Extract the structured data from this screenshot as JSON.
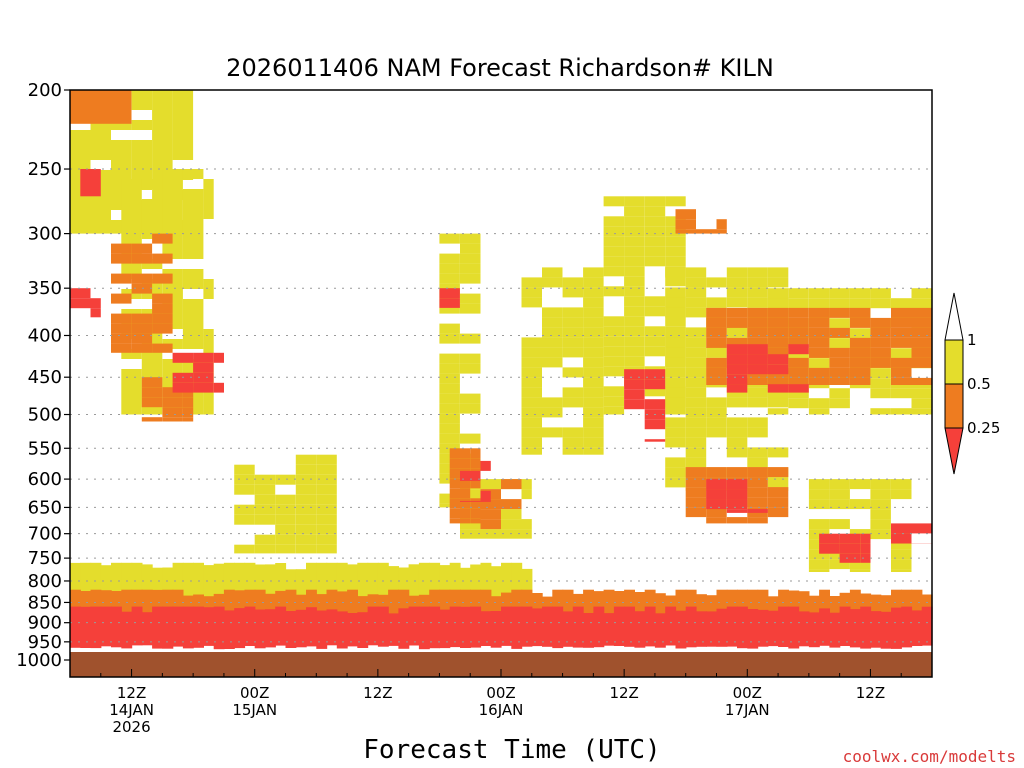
{
  "chart_data": {
    "type": "heatmap",
    "title": "2026011406 NAM Forecast Richardson# KILN",
    "xlabel": "Forecast Time (UTC)",
    "ylabel": "",
    "y_scale": "log pressure",
    "ylim": [
      1000,
      200
    ],
    "grid": true,
    "y_ticks": [
      200,
      250,
      300,
      350,
      400,
      450,
      500,
      550,
      600,
      650,
      700,
      750,
      800,
      850,
      900,
      950,
      1000
    ],
    "x_ticks": [
      {
        "hour": 6,
        "lines": [
          "12Z",
          "14JAN",
          "2026"
        ]
      },
      {
        "hour": 18,
        "lines": [
          "00Z",
          "15JAN"
        ]
      },
      {
        "hour": 30,
        "lines": [
          "12Z"
        ]
      },
      {
        "hour": 42,
        "lines": [
          "00Z",
          "16JAN"
        ]
      },
      {
        "hour": 54,
        "lines": [
          "12Z"
        ]
      },
      {
        "hour": 66,
        "lines": [
          "00Z",
          "17JAN"
        ]
      },
      {
        "hour": 78,
        "lines": [
          "12Z"
        ]
      }
    ],
    "forecast_hours": [
      0,
      84
    ],
    "colorbar": {
      "levels": [
        0.25,
        0.5,
        1
      ],
      "labels": [
        "1",
        "0.5",
        "0.25"
      ],
      "colors": {
        "lt_0_25": "#f5403a",
        "0_25_to_0_5": "#ee7c20",
        "0_5_to_1": "#e4dd2c",
        "ground": "#a0522d"
      }
    },
    "series": [
      {
        "category": "0.5-1",
        "regions": [
          {
            "hours": [
              0,
              12
            ],
            "pressure": [
              200,
              300
            ]
          },
          {
            "hours": [
              5,
              14
            ],
            "pressure": [
              250,
              500
            ]
          },
          {
            "hours": [
              16,
              26
            ],
            "pressure": [
              560,
              740
            ]
          },
          {
            "hours": [
              36,
              40
            ],
            "pressure": [
              300,
              650
            ]
          },
          {
            "hours": [
              38,
              45
            ],
            "pressure": [
              600,
              710
            ]
          },
          {
            "hours": [
              44,
              52
            ],
            "pressure": [
              330,
              560
            ]
          },
          {
            "hours": [
              52,
              60
            ],
            "pressure": [
              270,
              500
            ]
          },
          {
            "hours": [
              58,
              70
            ],
            "pressure": [
              330,
              620
            ]
          },
          {
            "hours": [
              68,
              84
            ],
            "pressure": [
              350,
              500
            ]
          },
          {
            "hours": [
              72,
              82
            ],
            "pressure": [
              600,
              780
            ]
          },
          {
            "hours": [
              0,
              44
            ],
            "pressure": [
              760,
              860
            ]
          }
        ]
      },
      {
        "category": "0.25-0.5",
        "regions": [
          {
            "hours": [
              0,
              6
            ],
            "pressure": [
              200,
              220
            ]
          },
          {
            "hours": [
              4,
              10
            ],
            "pressure": [
              300,
              420
            ]
          },
          {
            "hours": [
              7,
              12
            ],
            "pressure": [
              450,
              510
            ]
          },
          {
            "hours": [
              37,
              40
            ],
            "pressure": [
              550,
              680
            ]
          },
          {
            "hours": [
              40,
              44
            ],
            "pressure": [
              600,
              700
            ]
          },
          {
            "hours": [
              59,
              64
            ],
            "pressure": [
              280,
              300
            ]
          },
          {
            "hours": [
              62,
              84
            ],
            "pressure": [
              370,
              460
            ]
          },
          {
            "hours": [
              60,
              70
            ],
            "pressure": [
              580,
              680
            ]
          },
          {
            "hours": [
              0,
              84
            ],
            "pressure": [
              820,
              900
            ]
          }
        ]
      },
      {
        "category": "0-0.25",
        "regions": [
          {
            "hours": [
              1,
              3
            ],
            "pressure": [
              250,
              270
            ]
          },
          {
            "hours": [
              0,
              3
            ],
            "pressure": [
              350,
              380
            ]
          },
          {
            "hours": [
              10,
              15
            ],
            "pressure": [
              420,
              470
            ]
          },
          {
            "hours": [
              36,
              38
            ],
            "pressure": [
              350,
              370
            ]
          },
          {
            "hours": [
              38,
              41
            ],
            "pressure": [
              570,
              640
            ]
          },
          {
            "hours": [
              64,
              72
            ],
            "pressure": [
              410,
              470
            ]
          },
          {
            "hours": [
              54,
              58
            ],
            "pressure": [
              440,
              540
            ]
          },
          {
            "hours": [
              62,
              68
            ],
            "pressure": [
              600,
              660
            ]
          },
          {
            "hours": [
              73,
              78
            ],
            "pressure": [
              700,
              760
            ]
          },
          {
            "hours": [
              80,
              84
            ],
            "pressure": [
              680,
              720
            ]
          },
          {
            "hours": [
              0,
              84
            ],
            "pressure": [
              860,
              970
            ]
          }
        ]
      }
    ]
  },
  "credit": "coolwx.com/modelts"
}
